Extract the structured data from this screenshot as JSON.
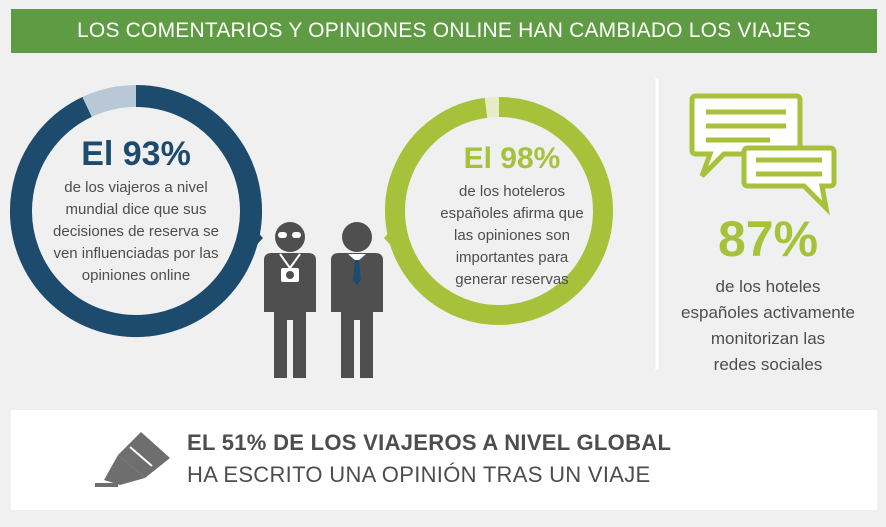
{
  "header": {
    "title": "LOS COMENTARIOS Y OPINIONES ONLINE HAN CAMBIADO LOS VIAJES"
  },
  "colors": {
    "header_green": "#5e9b43",
    "dark_blue": "#1d4b6e",
    "light_blue": "#b8c8d6",
    "lime": "#a7c13a",
    "light_lime": "#e6ecc5",
    "gray_text": "#4d4d4d",
    "icon_gray": "#4f4f4f"
  },
  "stat_travelers": {
    "big": "El 93%",
    "fraction": 0.93,
    "lines": [
      "de los viajeros a nivel",
      "mundial dice que sus",
      "decisiones de reserva se",
      "ven influenciadas por las",
      "opiniones online"
    ]
  },
  "stat_hoteliers": {
    "big": "El 98%",
    "fraction": 0.98,
    "lines": [
      "de los hoteleros",
      "españoles afirma que",
      "las opiniones son",
      "importantes para",
      "generar reservas"
    ]
  },
  "stat_hotels": {
    "big": "87%",
    "lines": [
      "de los hoteles",
      "españoles activamente",
      "monitorizan las",
      "redes sociales"
    ]
  },
  "bottom": {
    "line1": "EL 51% DE LOS VIAJEROS A NIVEL GLOBAL",
    "line2": "HA ESCRITO UNA OPINIÓN TRAS UN VIAJE"
  }
}
